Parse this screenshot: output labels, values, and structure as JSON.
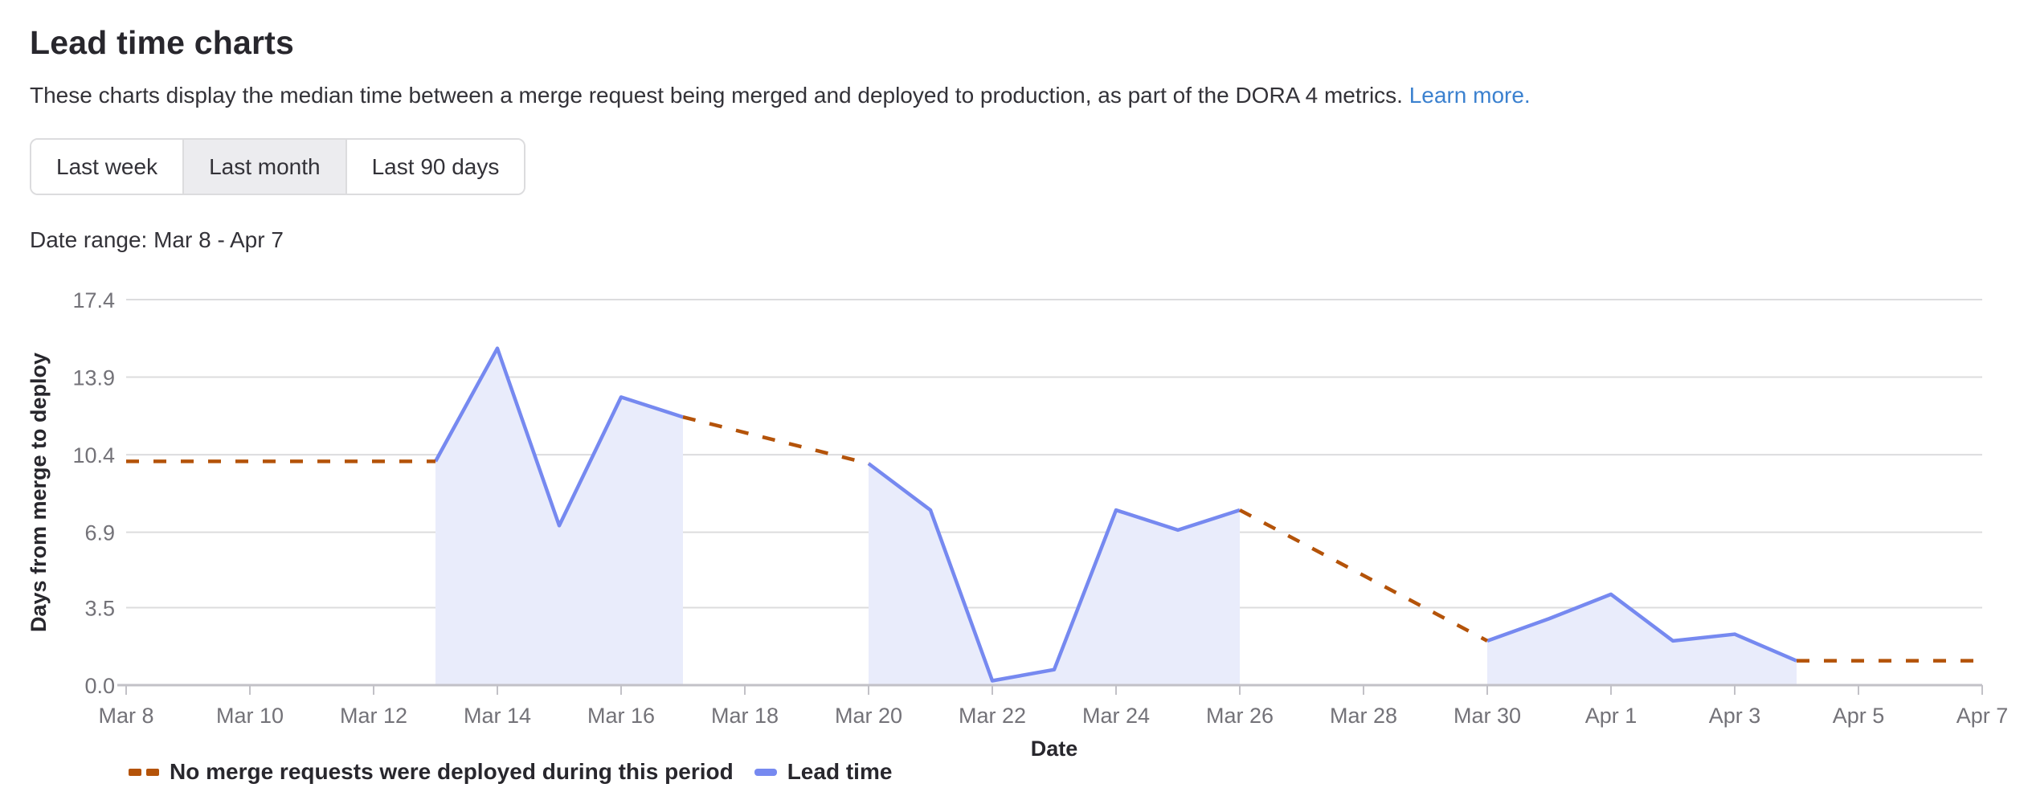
{
  "header": {
    "title": "Lead time charts",
    "description": "These charts display the median time between a merge request being merged and deployed to production, as part of the DORA 4 metrics.",
    "learn_more": "Learn more."
  },
  "filters": {
    "buttons": [
      {
        "label": "Last week",
        "selected": false
      },
      {
        "label": "Last month",
        "selected": true
      },
      {
        "label": "Last 90 days",
        "selected": false
      }
    ]
  },
  "date_range_label": "Date range: Mar 8 - Apr 7",
  "legend": {
    "no_deploy_label": "No merge requests were deployed during this period",
    "lead_time_label": "Lead time"
  },
  "colors": {
    "lead_time_line": "#7689f0",
    "lead_time_fill": "#e9ecfb",
    "no_deploy_dash": "#b45309",
    "gridline": "#dcdcde",
    "axis_line": "#c2c1c7",
    "tick_text": "#737278",
    "axis_title_text": "#28272d",
    "link": "#3b81cf"
  },
  "chart_data": {
    "type": "line",
    "title": "Lead time",
    "xlabel": "Date",
    "ylabel": "Days from merge to deploy",
    "ylim": [
      0,
      17.4
    ],
    "x_domain": [
      "Mar 8",
      "Apr 7"
    ],
    "grid": true,
    "legend_position": "bottom",
    "y_ticks": [
      {
        "value": 0,
        "label": "0.0"
      },
      {
        "value": 3.5,
        "label": "3.5"
      },
      {
        "value": 6.9,
        "label": "6.9"
      },
      {
        "value": 10.4,
        "label": "10.4"
      },
      {
        "value": 13.9,
        "label": "13.9"
      },
      {
        "value": 17.4,
        "label": "17.4"
      }
    ],
    "x_ticks": [
      "Mar 8",
      "Mar 10",
      "Mar 12",
      "Mar 14",
      "Mar 16",
      "Mar 18",
      "Mar 20",
      "Mar 22",
      "Mar 24",
      "Mar 26",
      "Mar 28",
      "Mar 30",
      "Apr 1",
      "Apr 3",
      "Apr 5",
      "Apr 7"
    ],
    "series": [
      {
        "name": "Lead time",
        "style": "solid",
        "area_fill": true,
        "segments": [
          [
            [
              "Mar 13",
              10.1
            ],
            [
              "Mar 14",
              15.2
            ],
            [
              "Mar 15",
              7.2
            ],
            [
              "Mar 16",
              13.0
            ],
            [
              "Mar 17",
              12.1
            ]
          ],
          [
            [
              "Mar 20",
              10.0
            ],
            [
              "Mar 21",
              7.9
            ],
            [
              "Mar 22",
              0.2
            ],
            [
              "Mar 23",
              0.7
            ],
            [
              "Mar 24",
              7.9
            ],
            [
              "Mar 25",
              7.0
            ],
            [
              "Mar 26",
              7.9
            ]
          ],
          [
            [
              "Mar 30",
              2.0
            ],
            [
              "Mar 31",
              3.0
            ],
            [
              "Apr 1",
              4.1
            ],
            [
              "Apr 2",
              2.0
            ],
            [
              "Apr 3",
              2.3
            ],
            [
              "Apr 4",
              1.1
            ]
          ]
        ]
      },
      {
        "name": "No merge requests were deployed during this period",
        "style": "dashed",
        "area_fill": false,
        "segments": [
          [
            [
              "Mar 8",
              10.1
            ],
            [
              "Mar 13",
              10.1
            ]
          ],
          [
            [
              "Mar 17",
              12.1
            ],
            [
              "Mar 20",
              10.0
            ]
          ],
          [
            [
              "Mar 26",
              7.9
            ],
            [
              "Mar 30",
              2.0
            ]
          ],
          [
            [
              "Apr 4",
              1.1
            ],
            [
              "Apr 7",
              1.1
            ]
          ]
        ]
      }
    ]
  }
}
